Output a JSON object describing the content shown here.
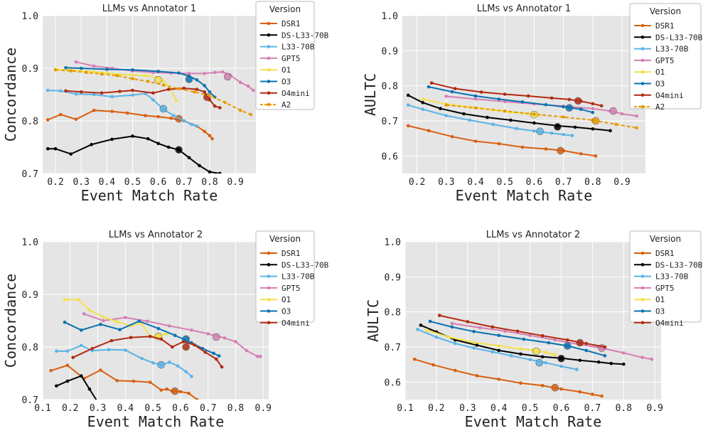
{
  "legend_title": "Version",
  "colors": {
    "DSR1": "#d95f0e",
    "DS-L33-70B": "#000000",
    "L33-70B": "#5ab4e6",
    "GPT5": "#d57fb4",
    "O1": "#f2e14b",
    "O3": "#0b72b0",
    "O4mini": "#b22a12",
    "A2": "#e69a00"
  },
  "chart_data": [
    {
      "type": "line",
      "title": "LLMs vs Annotator 1",
      "xlabel": "Event Match Rate",
      "ylabel": "Concordance",
      "xlim": [
        0.15,
        0.98
      ],
      "ylim": [
        0.7,
        1.0
      ],
      "xticks": [
        "0.2",
        "0.3",
        "0.4",
        "0.5",
        "0.6",
        "0.7",
        "0.8",
        "0.9"
      ],
      "yticks": [
        "0.7",
        "0.8",
        "0.9",
        "1.0"
      ],
      "series": [
        {
          "name": "DSR1",
          "x": [
            0.17,
            0.22,
            0.28,
            0.35,
            0.42,
            0.48,
            0.55,
            0.6,
            0.65,
            0.7,
            0.75,
            0.78,
            0.8,
            0.81
          ],
          "y": [
            0.802,
            0.812,
            0.803,
            0.82,
            0.818,
            0.815,
            0.81,
            0.808,
            0.805,
            0.8,
            0.79,
            0.78,
            0.772,
            0.766
          ],
          "marker": [
            0.68,
            0.804
          ]
        },
        {
          "name": "DS-L33-70B",
          "x": [
            0.17,
            0.2,
            0.26,
            0.34,
            0.42,
            0.5,
            0.56,
            0.6,
            0.64,
            0.68,
            0.72,
            0.76,
            0.8,
            0.84
          ],
          "y": [
            0.747,
            0.747,
            0.737,
            0.755,
            0.765,
            0.771,
            0.766,
            0.757,
            0.75,
            0.745,
            0.73,
            0.715,
            0.703,
            0.7
          ],
          "marker": [
            0.68,
            0.745
          ]
        },
        {
          "name": "L33-70B",
          "x": [
            0.17,
            0.22,
            0.28,
            0.35,
            0.42,
            0.5,
            0.55,
            0.58,
            0.62,
            0.66,
            0.7,
            0.73,
            0.75
          ],
          "y": [
            0.858,
            0.857,
            0.851,
            0.85,
            0.846,
            0.849,
            0.852,
            0.84,
            0.822,
            0.81,
            0.8,
            0.793,
            0.79
          ],
          "marker": [
            0.62,
            0.823
          ]
        },
        {
          "name": "GPT5",
          "x": [
            0.28,
            0.35,
            0.42,
            0.5,
            0.58,
            0.65,
            0.72,
            0.78,
            0.82,
            0.85,
            0.88,
            0.92,
            0.95,
            0.97
          ],
          "y": [
            0.912,
            0.904,
            0.9,
            0.895,
            0.892,
            0.891,
            0.89,
            0.89,
            0.892,
            0.893,
            0.887,
            0.873,
            0.866,
            0.858
          ],
          "marker": [
            0.87,
            0.884
          ]
        },
        {
          "name": "O1",
          "x": [
            0.2,
            0.25,
            0.3,
            0.35,
            0.4,
            0.45,
            0.5,
            0.55,
            0.6,
            0.62,
            0.65,
            0.67
          ],
          "y": [
            0.898,
            0.897,
            0.895,
            0.893,
            0.891,
            0.888,
            0.887,
            0.886,
            0.882,
            0.876,
            0.86,
            0.838
          ],
          "marker": [
            0.6,
            0.878
          ]
        },
        {
          "name": "O3",
          "x": [
            0.24,
            0.3,
            0.4,
            0.5,
            0.6,
            0.68,
            0.72,
            0.75,
            0.78,
            0.8,
            0.82
          ],
          "y": [
            0.901,
            0.9,
            0.898,
            0.897,
            0.894,
            0.891,
            0.885,
            0.878,
            0.867,
            0.855,
            0.845
          ],
          "marker": [
            0.72,
            0.879
          ]
        },
        {
          "name": "O4mini",
          "x": [
            0.24,
            0.3,
            0.38,
            0.45,
            0.5,
            0.58,
            0.64,
            0.7,
            0.75,
            0.78,
            0.8,
            0.82,
            0.84
          ],
          "y": [
            0.857,
            0.855,
            0.853,
            0.856,
            0.858,
            0.853,
            0.86,
            0.862,
            0.86,
            0.855,
            0.84,
            0.828,
            0.825
          ],
          "marker": [
            0.79,
            0.845
          ]
        },
        {
          "name": "A2",
          "dashed": true,
          "x": [
            0.2,
            0.26,
            0.32,
            0.38,
            0.44,
            0.5,
            0.56,
            0.62,
            0.68,
            0.74,
            0.8,
            0.86,
            0.92,
            0.96
          ],
          "y": [
            0.897,
            0.895,
            0.892,
            0.889,
            0.886,
            0.88,
            0.875,
            0.868,
            0.861,
            0.855,
            0.848,
            0.835,
            0.82,
            0.812
          ],
          "marker": null
        }
      ]
    },
    {
      "type": "line",
      "title": "LLMs vs Annotator 1",
      "xlabel": "Event Match Rate",
      "ylabel": "AULTC",
      "xlim": [
        0.15,
        0.98
      ],
      "ylim": [
        0.55,
        1.0
      ],
      "xticks": [
        "0.2",
        "0.3",
        "0.4",
        "0.5",
        "0.6",
        "0.7",
        "0.8",
        "0.9"
      ],
      "yticks": [
        "0.6",
        "0.7",
        "0.8",
        "0.9",
        "1.0"
      ],
      "series": [
        {
          "name": "DSR1",
          "x": [
            0.17,
            0.24,
            0.32,
            0.4,
            0.48,
            0.56,
            0.64,
            0.7,
            0.76,
            0.81
          ],
          "y": [
            0.686,
            0.672,
            0.655,
            0.642,
            0.635,
            0.625,
            0.62,
            0.615,
            0.606,
            0.6
          ],
          "marker": [
            0.69,
            0.615
          ]
        },
        {
          "name": "DS-L33-70B",
          "x": [
            0.17,
            0.22,
            0.28,
            0.36,
            0.44,
            0.52,
            0.6,
            0.68,
            0.74,
            0.8,
            0.86
          ],
          "y": [
            0.773,
            0.752,
            0.735,
            0.72,
            0.71,
            0.702,
            0.694,
            0.686,
            0.682,
            0.677,
            0.672
          ],
          "marker": [
            0.68,
            0.683
          ]
        },
        {
          "name": "L33-70B",
          "x": [
            0.17,
            0.22,
            0.3,
            0.38,
            0.46,
            0.54,
            0.6,
            0.66,
            0.7,
            0.73
          ],
          "y": [
            0.745,
            0.733,
            0.715,
            0.702,
            0.69,
            0.678,
            0.671,
            0.665,
            0.661,
            0.658
          ],
          "marker": [
            0.62,
            0.67
          ]
        },
        {
          "name": "GPT5",
          "x": [
            0.3,
            0.4,
            0.5,
            0.6,
            0.7,
            0.8,
            0.86,
            0.9,
            0.95
          ],
          "y": [
            0.77,
            0.762,
            0.755,
            0.748,
            0.742,
            0.735,
            0.728,
            0.72,
            0.714
          ],
          "marker": [
            0.87,
            0.728
          ]
        },
        {
          "name": "O1",
          "x": [
            0.22,
            0.3,
            0.38,
            0.46,
            0.52,
            0.58,
            0.62
          ],
          "y": [
            0.762,
            0.748,
            0.739,
            0.731,
            0.725,
            0.72,
            0.717
          ],
          "marker": [
            0.6,
            0.718
          ]
        },
        {
          "name": "O3",
          "x": [
            0.24,
            0.32,
            0.4,
            0.48,
            0.56,
            0.64,
            0.7,
            0.76,
            0.8
          ],
          "y": [
            0.797,
            0.783,
            0.771,
            0.762,
            0.754,
            0.746,
            0.74,
            0.733,
            0.724
          ],
          "marker": [
            0.72,
            0.737
          ]
        },
        {
          "name": "O4mini",
          "x": [
            0.25,
            0.33,
            0.42,
            0.5,
            0.58,
            0.66,
            0.72,
            0.76,
            0.8,
            0.83
          ],
          "y": [
            0.808,
            0.792,
            0.782,
            0.776,
            0.771,
            0.765,
            0.761,
            0.756,
            0.749,
            0.743
          ],
          "marker": [
            0.75,
            0.757
          ]
        },
        {
          "name": "A2",
          "dashed": true,
          "x": [
            0.3,
            0.4,
            0.5,
            0.6,
            0.7,
            0.8,
            0.88,
            0.95
          ],
          "y": [
            0.745,
            0.737,
            0.728,
            0.719,
            0.711,
            0.702,
            0.69,
            0.68
          ],
          "marker": [
            0.81,
            0.7
          ]
        }
      ]
    },
    {
      "type": "line",
      "title": "LLMs vs Annotator 2",
      "xlabel": "Event Match Rate",
      "ylabel": "Concordance",
      "xlim": [
        0.1,
        0.92
      ],
      "ylim": [
        0.7,
        1.0
      ],
      "xticks": [
        "0.1",
        "0.2",
        "0.3",
        "0.4",
        "0.5",
        "0.6",
        "0.7",
        "0.8",
        "0.9"
      ],
      "yticks": [
        "0.7",
        "0.8",
        "0.9",
        "1.0"
      ],
      "series": [
        {
          "name": "DSR1",
          "x": [
            0.13,
            0.19,
            0.25,
            0.31,
            0.37,
            0.43,
            0.49,
            0.53,
            0.55,
            0.57,
            0.6,
            0.63,
            0.66,
            0.68
          ],
          "y": [
            0.755,
            0.765,
            0.74,
            0.756,
            0.736,
            0.735,
            0.733,
            0.718,
            0.72,
            0.716,
            0.715,
            0.712,
            0.7,
            0.695
          ],
          "marker": [
            0.58,
            0.716
          ]
        },
        {
          "name": "DS-L33-70B",
          "x": [
            0.15,
            0.19,
            0.24,
            0.27,
            0.3
          ],
          "y": [
            0.726,
            0.735,
            0.745,
            0.72,
            0.695
          ],
          "marker": null
        },
        {
          "name": "L33-70B",
          "x": [
            0.15,
            0.19,
            0.24,
            0.28,
            0.34,
            0.4,
            0.46,
            0.5,
            0.53,
            0.56,
            0.59,
            0.62,
            0.64
          ],
          "y": [
            0.792,
            0.792,
            0.803,
            0.793,
            0.795,
            0.794,
            0.778,
            0.77,
            0.766,
            0.771,
            0.764,
            0.753,
            0.744
          ],
          "marker": [
            0.53,
            0.766
          ]
        },
        {
          "name": "GPT5",
          "x": [
            0.25,
            0.32,
            0.4,
            0.48,
            0.56,
            0.64,
            0.7,
            0.76,
            0.8,
            0.84,
            0.88,
            0.89
          ],
          "y": [
            0.863,
            0.85,
            0.856,
            0.849,
            0.84,
            0.832,
            0.825,
            0.817,
            0.81,
            0.793,
            0.782,
            0.782
          ],
          "marker": [
            0.73,
            0.819
          ]
        },
        {
          "name": "O1",
          "x": [
            0.18,
            0.23,
            0.27,
            0.32,
            0.37,
            0.42,
            0.46,
            0.49,
            0.52,
            0.55
          ],
          "y": [
            0.89,
            0.89,
            0.87,
            0.857,
            0.848,
            0.84,
            0.845,
            0.82,
            0.822,
            0.825
          ],
          "marker": [
            0.52,
            0.82
          ]
        },
        {
          "name": "O3",
          "x": [
            0.18,
            0.24,
            0.31,
            0.38,
            0.45,
            0.52,
            0.58,
            0.64,
            0.68,
            0.72,
            0.74
          ],
          "y": [
            0.847,
            0.832,
            0.843,
            0.833,
            0.849,
            0.835,
            0.822,
            0.808,
            0.797,
            0.788,
            0.783
          ],
          "marker": [
            0.62,
            0.815
          ]
        },
        {
          "name": "O4mini",
          "x": [
            0.21,
            0.28,
            0.35,
            0.42,
            0.49,
            0.53,
            0.57,
            0.61,
            0.65,
            0.69,
            0.73,
            0.75
          ],
          "y": [
            0.78,
            0.797,
            0.812,
            0.818,
            0.82,
            0.815,
            0.8,
            0.81,
            0.804,
            0.79,
            0.777,
            0.762
          ],
          "marker": [
            0.62,
            0.8
          ]
        }
      ]
    },
    {
      "type": "line",
      "title": "LLMs vs Annotator 2",
      "xlabel": "Event Match Rate",
      "ylabel": "AULTC",
      "xlim": [
        0.1,
        0.92
      ],
      "ylim": [
        0.55,
        1.0
      ],
      "xticks": [
        "0.1",
        "0.2",
        "0.3",
        "0.4",
        "0.5",
        "0.6",
        "0.7",
        "0.8",
        "0.9"
      ],
      "yticks": [
        "0.6",
        "0.7",
        "0.8",
        "0.9",
        "1.0"
      ],
      "series": [
        {
          "name": "DSR1",
          "x": [
            0.13,
            0.19,
            0.26,
            0.33,
            0.4,
            0.47,
            0.54,
            0.6,
            0.66,
            0.7,
            0.73
          ],
          "y": [
            0.665,
            0.649,
            0.633,
            0.618,
            0.608,
            0.597,
            0.59,
            0.58,
            0.572,
            0.565,
            0.56
          ],
          "marker": [
            0.58,
            0.584
          ]
        },
        {
          "name": "DS-L33-70B",
          "x": [
            0.15,
            0.2,
            0.26,
            0.33,
            0.4,
            0.47,
            0.54,
            0.6,
            0.66,
            0.72,
            0.76,
            0.8
          ],
          "y": [
            0.762,
            0.743,
            0.72,
            0.705,
            0.69,
            0.68,
            0.672,
            0.668,
            0.662,
            0.657,
            0.653,
            0.651
          ],
          "marker": [
            0.6,
            0.667
          ]
        },
        {
          "name": "L33-70B",
          "x": [
            0.14,
            0.2,
            0.26,
            0.32,
            0.38,
            0.44,
            0.5,
            0.55,
            0.6,
            0.65
          ],
          "y": [
            0.75,
            0.728,
            0.71,
            0.697,
            0.686,
            0.675,
            0.664,
            0.655,
            0.645,
            0.636
          ],
          "marker": [
            0.53,
            0.655
          ]
        },
        {
          "name": "GPT5",
          "x": [
            0.25,
            0.34,
            0.42,
            0.5,
            0.58,
            0.66,
            0.73,
            0.8,
            0.86,
            0.89
          ],
          "y": [
            0.767,
            0.755,
            0.745,
            0.733,
            0.72,
            0.707,
            0.697,
            0.683,
            0.67,
            0.665
          ],
          "marker": [
            0.73,
            0.697
          ]
        },
        {
          "name": "O1",
          "x": [
            0.17,
            0.24,
            0.32,
            0.4,
            0.47,
            0.52,
            0.55,
            0.58
          ],
          "y": [
            0.748,
            0.728,
            0.713,
            0.703,
            0.695,
            0.689,
            0.685,
            0.678
          ],
          "marker": [
            0.52,
            0.688
          ]
        },
        {
          "name": "O3",
          "x": [
            0.18,
            0.25,
            0.32,
            0.4,
            0.48,
            0.56,
            0.62,
            0.68,
            0.74
          ],
          "y": [
            0.773,
            0.757,
            0.744,
            0.733,
            0.722,
            0.712,
            0.703,
            0.69,
            0.675
          ],
          "marker": [
            0.62,
            0.703
          ]
        },
        {
          "name": "O4mini",
          "x": [
            0.21,
            0.3,
            0.38,
            0.46,
            0.54,
            0.62,
            0.68,
            0.74
          ],
          "y": [
            0.79,
            0.772,
            0.757,
            0.745,
            0.732,
            0.72,
            0.71,
            0.7
          ],
          "marker": [
            0.66,
            0.712
          ]
        }
      ]
    }
  ]
}
